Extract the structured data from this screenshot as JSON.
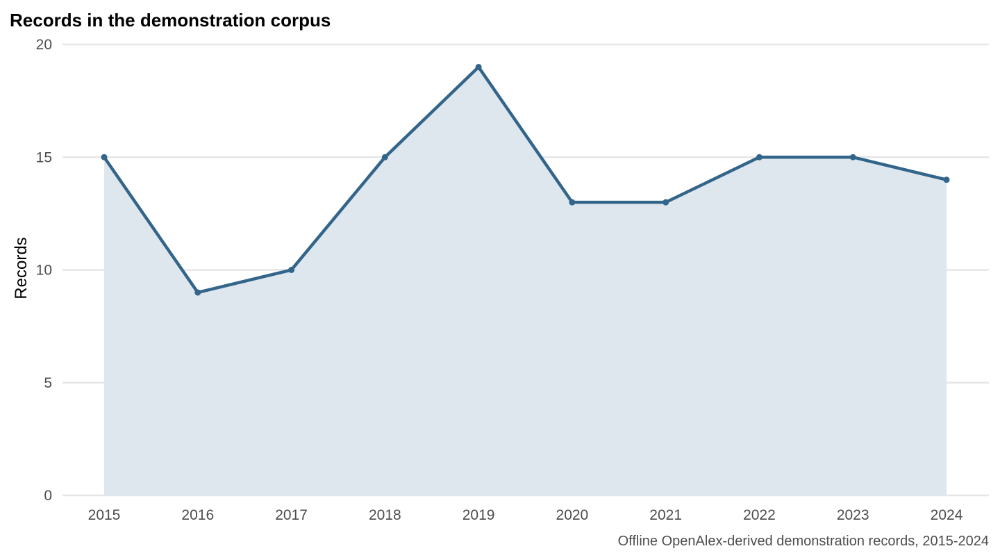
{
  "chart_data": {
    "type": "area",
    "title": "Records in the demonstration corpus",
    "ylabel": "Records",
    "xlabel": "",
    "caption": "Offline OpenAlex-derived demonstration records, 2015-2024",
    "x": [
      "2015",
      "2016",
      "2017",
      "2018",
      "2019",
      "2020",
      "2021",
      "2022",
      "2023",
      "2024"
    ],
    "series": [
      {
        "values": [
          15,
          9,
          10,
          15,
          19,
          13,
          13,
          15,
          15,
          14
        ]
      }
    ],
    "yticks": [
      0,
      5,
      10,
      15,
      20
    ],
    "ylim": [
      0,
      20
    ],
    "grid": "horizontal major",
    "legend": "none",
    "colors": {
      "line": "#33658a",
      "area": "#dee6ee",
      "grid": "#e6e6e9"
    }
  }
}
